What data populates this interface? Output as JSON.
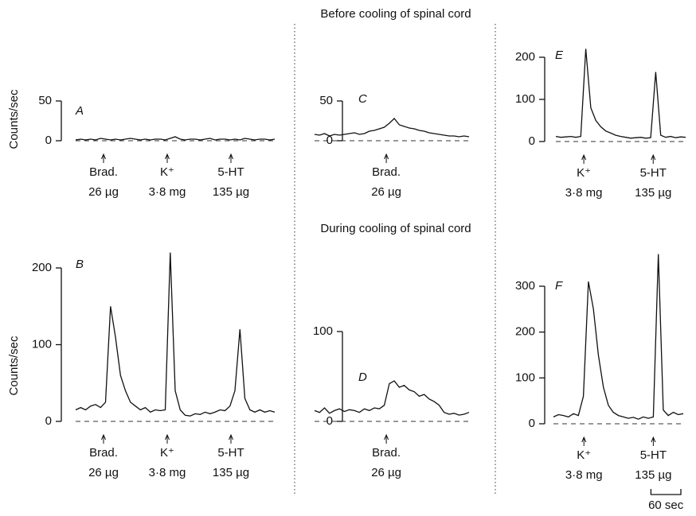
{
  "chart_data": [
    {
      "type": "line",
      "panel": "A",
      "heading": "Before cooling of spinal cord",
      "ylabel": "Counts/sec",
      "color": "#111",
      "x": [
        0,
        10,
        20,
        30,
        40,
        50,
        60,
        70,
        80,
        90,
        100,
        110,
        120,
        130,
        140,
        150,
        160,
        170,
        180,
        190,
        200,
        210,
        220,
        230,
        240,
        250,
        260,
        270,
        280,
        290,
        300,
        310,
        320,
        330,
        340,
        350,
        360,
        370,
        380,
        390,
        400
      ],
      "values": [
        1,
        2,
        1,
        2,
        1,
        3,
        2,
        1,
        2,
        1,
        2,
        3,
        2,
        1,
        2,
        1,
        2,
        2,
        1,
        3,
        5,
        2,
        1,
        2,
        2,
        1,
        2,
        3,
        1,
        2,
        2,
        1,
        2,
        1,
        3,
        2,
        1,
        2,
        2,
        1,
        2
      ],
      "xlim": [
        0,
        400
      ],
      "ylim": [
        0,
        50
      ],
      "yticks": [
        0,
        50
      ],
      "annotations": [
        {
          "x": 56,
          "lines": [
            "Brad.",
            "26 µg"
          ]
        },
        {
          "x": 184,
          "lines": [
            "K⁺",
            "3·8 mg"
          ]
        },
        {
          "x": 312,
          "lines": [
            "5-HT",
            "135 µg"
          ]
        }
      ]
    },
    {
      "type": "line",
      "panel": "C",
      "color": "#111",
      "x": [
        0,
        10,
        20,
        30,
        40,
        50,
        60,
        70,
        80,
        90,
        100,
        110,
        120,
        130,
        140,
        150,
        160,
        170,
        180,
        190,
        200,
        210,
        220,
        230,
        240,
        250,
        260,
        270,
        280,
        290,
        300,
        310
      ],
      "values": [
        8,
        7,
        9,
        6,
        8,
        7,
        8,
        9,
        10,
        8,
        9,
        12,
        13,
        15,
        17,
        22,
        28,
        20,
        18,
        16,
        15,
        13,
        12,
        10,
        9,
        8,
        7,
        6,
        6,
        5,
        6,
        5
      ],
      "xlim": [
        0,
        310
      ],
      "ylim": [
        0,
        50
      ],
      "yticks": [
        0,
        50
      ],
      "annotations": [
        {
          "x": 144,
          "lines": [
            "Brad.",
            "26 µg"
          ]
        }
      ]
    },
    {
      "type": "line",
      "panel": "E",
      "color": "#111",
      "x": [
        0,
        10,
        20,
        30,
        40,
        50,
        60,
        70,
        80,
        90,
        100,
        110,
        120,
        130,
        140,
        150,
        160,
        170,
        180,
        190,
        200,
        210,
        220,
        230,
        240,
        250,
        260
      ],
      "values": [
        12,
        10,
        11,
        12,
        10,
        12,
        220,
        80,
        50,
        35,
        25,
        20,
        15,
        12,
        10,
        8,
        9,
        10,
        8,
        9,
        165,
        15,
        10,
        12,
        9,
        11,
        10
      ],
      "xlim": [
        0,
        260
      ],
      "ylim": [
        0,
        200
      ],
      "yticks": [
        0,
        100,
        200
      ],
      "annotations": [
        {
          "x": 56,
          "lines": [
            "K⁺",
            "3·8 mg"
          ]
        },
        {
          "x": 195,
          "lines": [
            "5-HT",
            "135 µg"
          ]
        }
      ]
    },
    {
      "type": "line",
      "panel": "B",
      "heading": "During cooling of spinal cord",
      "ylabel": "Counts/sec",
      "color": "#111",
      "x": [
        0,
        10,
        20,
        30,
        40,
        50,
        60,
        70,
        80,
        90,
        100,
        110,
        120,
        130,
        140,
        150,
        160,
        170,
        180,
        190,
        200,
        210,
        220,
        230,
        240,
        250,
        260,
        270,
        280,
        290,
        300,
        310,
        320,
        330,
        340,
        350,
        360,
        370,
        380,
        390,
        400
      ],
      "values": [
        15,
        18,
        15,
        20,
        22,
        18,
        25,
        150,
        110,
        60,
        40,
        25,
        20,
        15,
        18,
        12,
        15,
        14,
        15,
        220,
        40,
        15,
        8,
        7,
        10,
        9,
        12,
        10,
        12,
        15,
        14,
        20,
        40,
        120,
        30,
        15,
        12,
        15,
        12,
        14,
        12
      ],
      "xlim": [
        0,
        400
      ],
      "ylim": [
        0,
        200
      ],
      "yticks": [
        0,
        100,
        200
      ],
      "annotations": [
        {
          "x": 56,
          "lines": [
            "Brad.",
            "26 µg"
          ]
        },
        {
          "x": 184,
          "lines": [
            "K⁺",
            "3·8 mg"
          ]
        },
        {
          "x": 312,
          "lines": [
            "5-HT",
            "135 µg"
          ]
        }
      ]
    },
    {
      "type": "line",
      "panel": "D",
      "color": "#111",
      "x": [
        0,
        10,
        20,
        30,
        40,
        50,
        60,
        70,
        80,
        90,
        100,
        110,
        120,
        130,
        140,
        150,
        160,
        170,
        180,
        190,
        200,
        210,
        220,
        230,
        240,
        250,
        260,
        270,
        280,
        290,
        300,
        310
      ],
      "values": [
        12,
        10,
        15,
        9,
        12,
        14,
        11,
        13,
        12,
        10,
        14,
        12,
        15,
        14,
        18,
        42,
        45,
        38,
        40,
        35,
        33,
        28,
        30,
        25,
        22,
        18,
        10,
        8,
        9,
        7,
        8,
        10
      ],
      "xlim": [
        0,
        310
      ],
      "ylim": [
        0,
        100
      ],
      "yticks": [
        0,
        100
      ],
      "annotations": [
        {
          "x": 144,
          "lines": [
            "Brad.",
            "26 µg"
          ]
        }
      ]
    },
    {
      "type": "line",
      "panel": "F",
      "color": "#111",
      "x": [
        0,
        10,
        20,
        30,
        40,
        50,
        60,
        70,
        80,
        90,
        100,
        110,
        120,
        130,
        140,
        150,
        160,
        170,
        180,
        190,
        200,
        210,
        220,
        230,
        240,
        250,
        260
      ],
      "values": [
        15,
        20,
        18,
        15,
        22,
        18,
        60,
        310,
        250,
        150,
        80,
        40,
        25,
        18,
        15,
        12,
        14,
        10,
        15,
        12,
        15,
        370,
        30,
        18,
        25,
        20,
        22
      ],
      "xlim": [
        0,
        260
      ],
      "ylim": [
        0,
        300
      ],
      "yticks": [
        0,
        100,
        200,
        300
      ],
      "annotations": [
        {
          "x": 61,
          "lines": [
            "K⁺",
            "3·8 mg"
          ]
        },
        {
          "x": 200,
          "lines": [
            "5-HT",
            "135 µg"
          ]
        }
      ],
      "scale_bar": {
        "length": 60,
        "label": "60 sec"
      }
    }
  ]
}
